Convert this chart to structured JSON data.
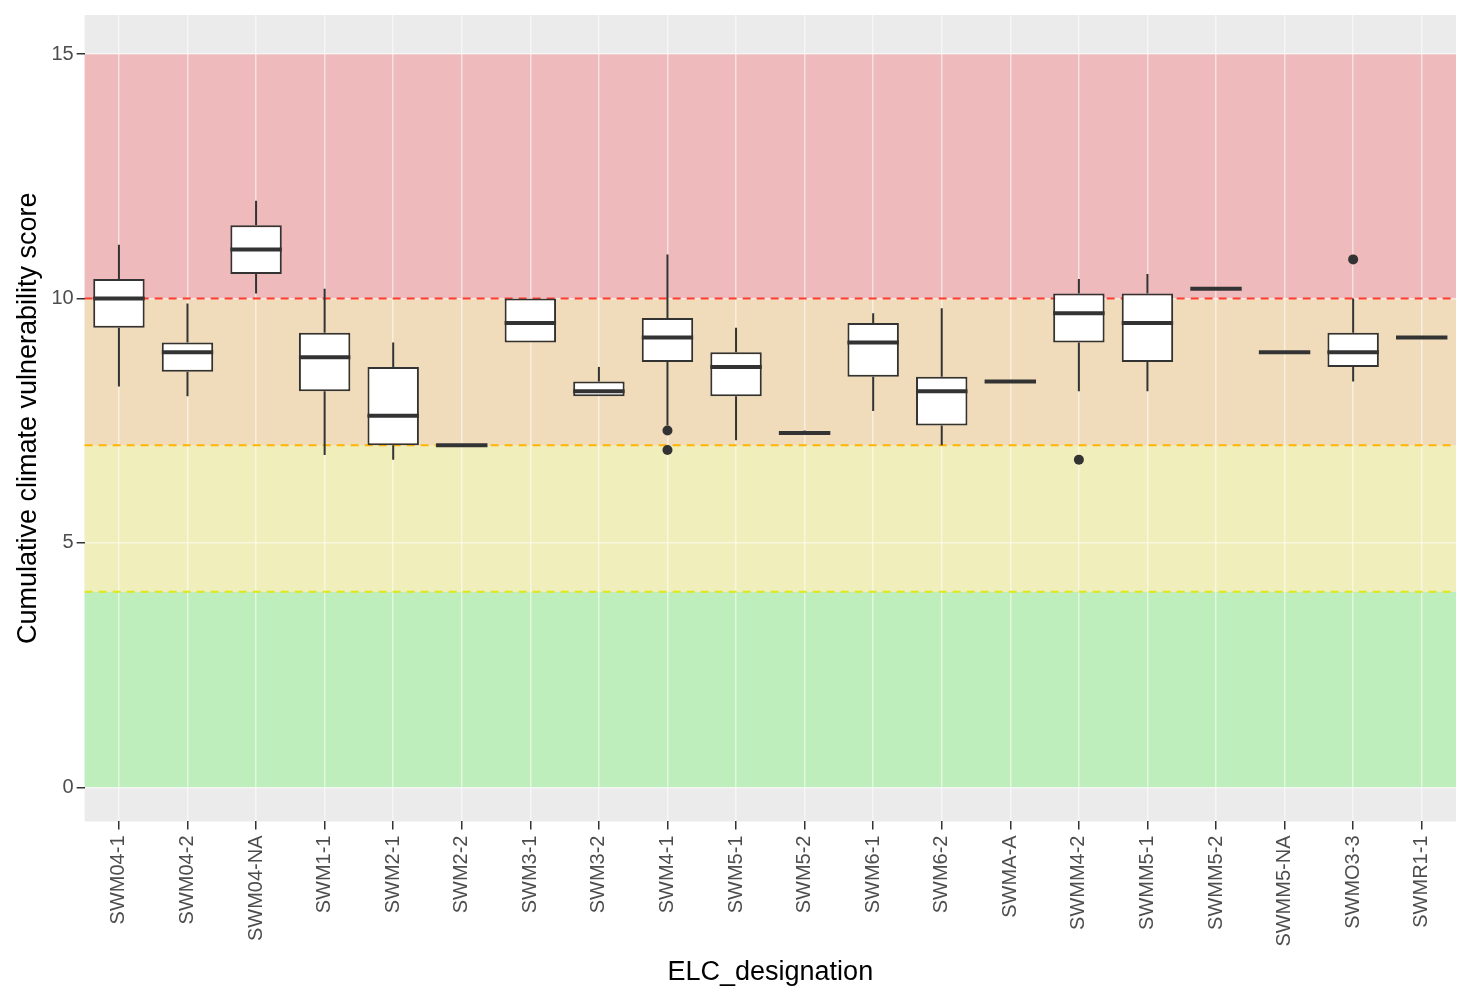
{
  "chart_data": {
    "type": "box",
    "xlabel": "ELC_designation",
    "ylabel": "Cumulative climate vulnerability score",
    "categories": [
      "SWM04-1",
      "SWM04-2",
      "SWM04-NA",
      "SWM1-1",
      "SWM2-1",
      "SWM2-2",
      "SWM3-1",
      "SWM3-2",
      "SWM4-1",
      "SWM5-1",
      "SWM5-2",
      "SWM6-1",
      "SWM6-2",
      "SWMA-A",
      "SWMM4-2",
      "SWMM5-1",
      "SWMM5-2",
      "SWMM5-NA",
      "SWMO3-3",
      "SWMR1-1"
    ],
    "boxes": [
      {
        "low": 8.2,
        "q1": 9.4,
        "median": 10.0,
        "q3": 10.4,
        "high": 11.1
      },
      {
        "low": 8.0,
        "q1": 8.5,
        "median": 8.9,
        "q3": 9.1,
        "high": 9.9
      },
      {
        "low": 10.1,
        "q1": 10.5,
        "median": 11.0,
        "q3": 11.5,
        "high": 12.0
      },
      {
        "low": 6.8,
        "q1": 8.1,
        "median": 8.8,
        "q3": 9.3,
        "high": 10.2
      },
      {
        "low": 6.7,
        "q1": 7.0,
        "median": 7.6,
        "q3": 8.6,
        "high": 9.1
      },
      {
        "low": 7.0,
        "q1": 7.0,
        "median": 7.0,
        "q3": 7.0,
        "high": 7.0
      },
      {
        "low": 9.1,
        "q1": 9.1,
        "median": 9.5,
        "q3": 10.0,
        "high": 10.0
      },
      {
        "low": 8.0,
        "q1": 8.0,
        "median": 8.1,
        "q3": 8.3,
        "high": 8.6
      },
      {
        "low": 7.4,
        "q1": 8.7,
        "median": 9.2,
        "q3": 9.6,
        "high": 10.9,
        "outliers": [
          7.3,
          6.9
        ]
      },
      {
        "low": 7.1,
        "q1": 8.0,
        "median": 8.6,
        "q3": 8.9,
        "high": 9.4
      },
      {
        "low": 7.25,
        "q1": 7.25,
        "median": 7.25,
        "q3": 7.25,
        "high": 7.3
      },
      {
        "low": 7.7,
        "q1": 8.4,
        "median": 9.1,
        "q3": 9.5,
        "high": 9.7
      },
      {
        "low": 7.0,
        "q1": 7.4,
        "median": 8.1,
        "q3": 8.4,
        "high": 9.8
      },
      {
        "low": 8.3,
        "q1": 8.3,
        "median": 8.3,
        "q3": 8.3,
        "high": 8.3
      },
      {
        "low": 8.1,
        "q1": 9.1,
        "median": 9.7,
        "q3": 10.1,
        "high": 10.4,
        "outliers": [
          6.7
        ]
      },
      {
        "low": 8.1,
        "q1": 8.7,
        "median": 9.5,
        "q3": 10.1,
        "high": 10.5
      },
      {
        "low": 10.2,
        "q1": 10.2,
        "median": 10.2,
        "q3": 10.2,
        "high": 10.2
      },
      {
        "low": 8.9,
        "q1": 8.9,
        "median": 8.9,
        "q3": 8.9,
        "high": 8.9
      },
      {
        "low": 8.3,
        "q1": 8.6,
        "median": 8.9,
        "q3": 9.3,
        "high": 10.0,
        "outliers": [
          10.8
        ]
      },
      {
        "low": 9.2,
        "q1": 9.2,
        "median": 9.2,
        "q3": 9.2,
        "high": 9.2
      }
    ],
    "ylim": [
      -0.7,
      15.8
    ],
    "yticks": [
      0,
      5,
      10,
      15
    ],
    "grid": true,
    "bands": [
      {
        "axis": "y",
        "from": 0,
        "to": 4,
        "color": "#bdeebb"
      },
      {
        "axis": "y",
        "from": 4,
        "to": 7,
        "color": "#f0eebb"
      },
      {
        "axis": "y",
        "from": 7,
        "to": 10,
        "color": "#f0dcba"
      },
      {
        "axis": "y",
        "from": 10,
        "to": 15,
        "color": "#eebabb"
      }
    ],
    "ref_lines": [
      {
        "axis": "y",
        "value": 10,
        "color": "#ff3b2f",
        "line_style": "dashed"
      },
      {
        "axis": "y",
        "value": 7,
        "color": "#ffb400",
        "line_style": "dashed"
      },
      {
        "axis": "y",
        "value": 4,
        "color": "#e0e81a",
        "line_style": "dashed"
      }
    ]
  }
}
